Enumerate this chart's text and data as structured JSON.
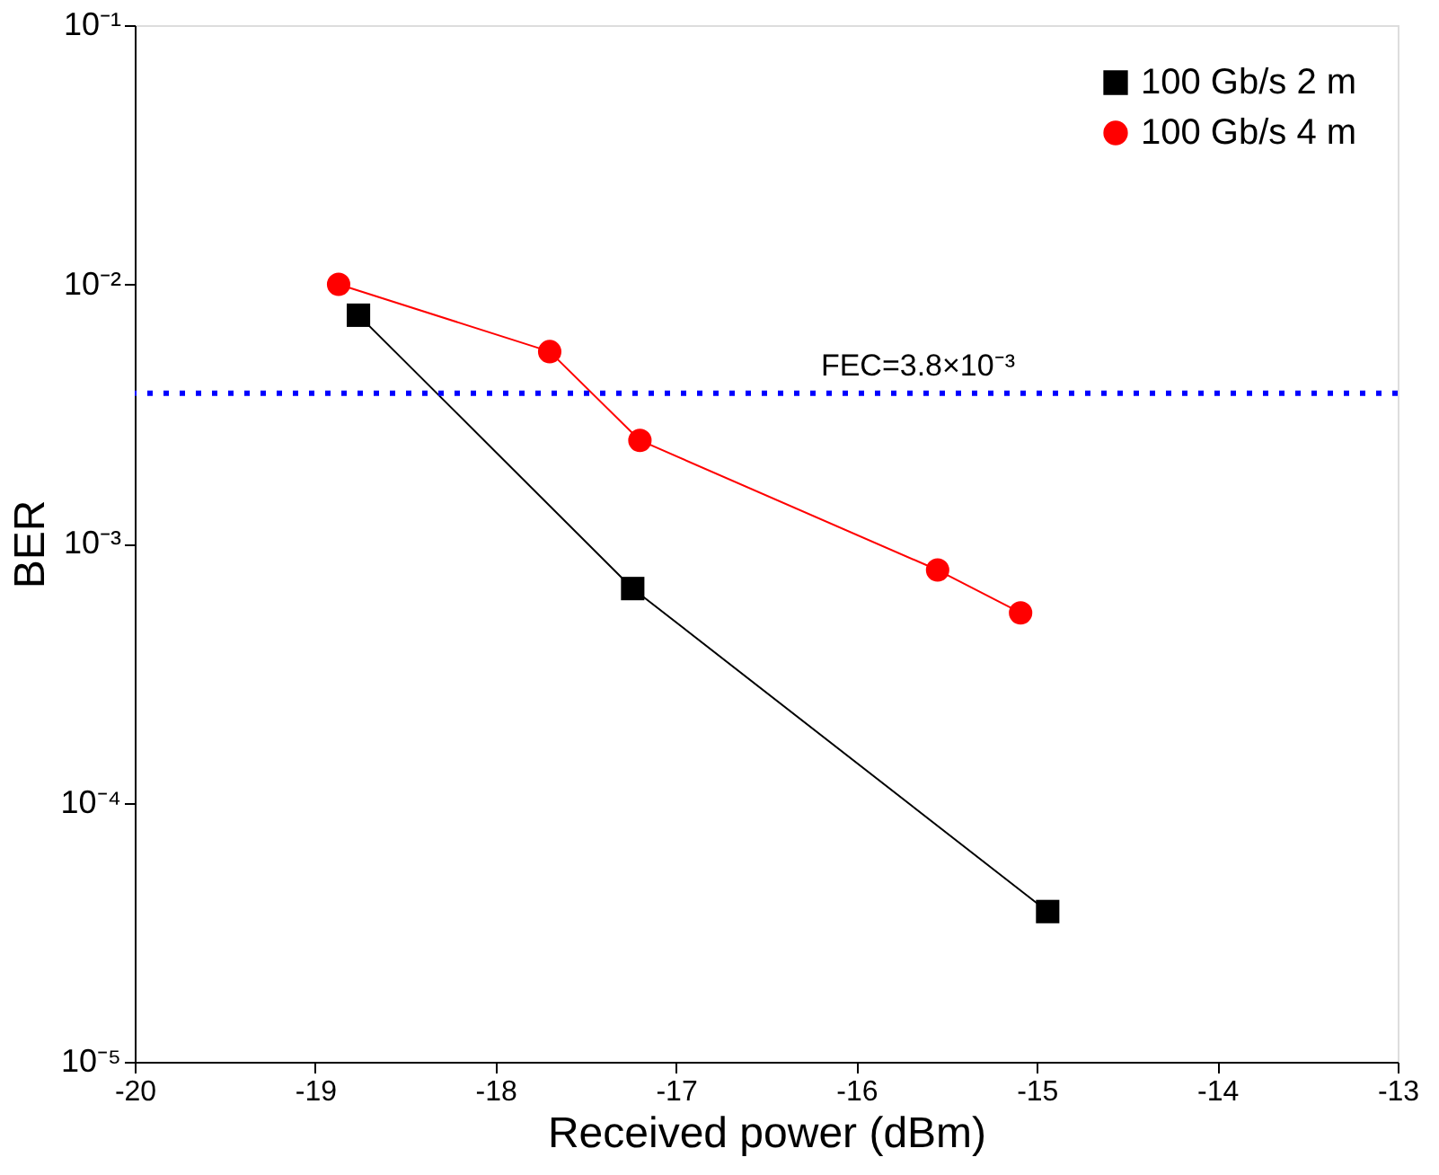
{
  "chart_data": {
    "type": "line",
    "xlabel": "Received power (dBm)",
    "ylabel": "BER",
    "xlim": [
      -20,
      -13
    ],
    "xticks": [
      -20,
      -19,
      -18,
      -17,
      -16,
      -15,
      -14,
      -13
    ],
    "ylim": [
      1e-05,
      0.1
    ],
    "yticks": [
      {
        "value": 1e-05,
        "label": "10⁻⁵"
      },
      {
        "value": 0.0001,
        "label": "10⁻⁴"
      },
      {
        "value": 0.001,
        "label": "10⁻³"
      },
      {
        "value": 0.01,
        "label": "10⁻²"
      },
      {
        "value": 0.1,
        "label": "10⁻¹"
      }
    ],
    "log": "y",
    "grid": false,
    "legend": "top right",
    "line_style": "solid",
    "series": [
      {
        "name": "100 Gb/s 2 m",
        "color": "#000000",
        "marker": "square",
        "x": [
          -18.76,
          -17.24,
          -14.94
        ],
        "values": [
          0.0076,
          0.00067,
          3.8e-05
        ]
      },
      {
        "name": "100 Gb/s 4 m",
        "color": "#ff0000",
        "marker": "circle",
        "x": [
          -18.87,
          -17.7,
          -17.2,
          -15.55,
          -15.09
        ],
        "values": [
          0.01,
          0.0055,
          0.0025,
          0.00079,
          0.00054
        ]
      }
    ],
    "ref_lines": [
      {
        "axis": "y",
        "value": 0.0038,
        "label": "FEC=3.8×10⁻³",
        "color": "#0000ff",
        "line_style": "dotted"
      }
    ]
  }
}
